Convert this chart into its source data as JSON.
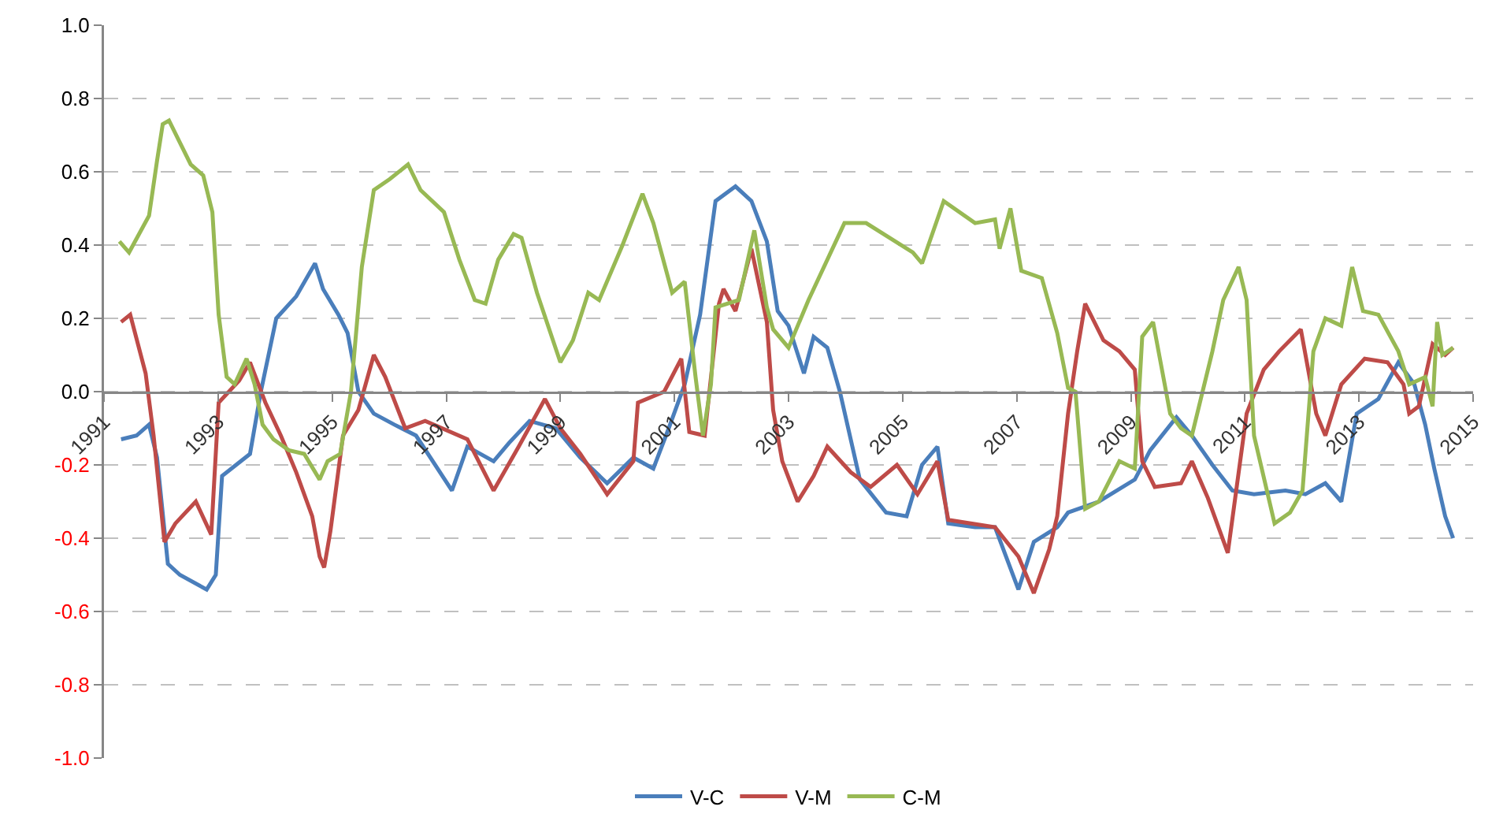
{
  "chart_data": {
    "type": "line",
    "xlim": [
      1991,
      2015
    ],
    "xticks": [
      1991,
      1993,
      1995,
      1997,
      1999,
      2001,
      2003,
      2005,
      2007,
      2009,
      2011,
      2013,
      2015
    ],
    "ylim": [
      -1,
      1
    ],
    "yticks": [
      {
        "value": -1,
        "label": "-1.0"
      },
      -0.8,
      -0.6,
      -0.4,
      -0.2,
      {
        "value": 0,
        "label": "0.0"
      },
      0.2,
      0.4,
      0.6,
      0.8,
      {
        "value": 1,
        "label": "1.0"
      }
    ],
    "grid": "y",
    "legend": "bottom",
    "marker": "none",
    "line_style": "solid",
    "series": [
      {
        "name": "V-C",
        "color": "#4a7ebb",
        "x": [
          1991.3,
          1991.57,
          1991.79,
          1991.93,
          1992.12,
          1992.33,
          1992.8,
          1992.96,
          1993.07,
          1993.56,
          1993.75,
          1994.02,
          1994.37,
          1994.7,
          1994.84,
          1995.11,
          1995.27,
          1995.46,
          1995.73,
          1996.09,
          1996.47,
          1997.1,
          1997.37,
          1997.83,
          1998.1,
          1998.46,
          1998.92,
          1999.35,
          1999.82,
          2000.28,
          2000.63,
          2000.9,
          2001.18,
          2001.45,
          2001.72,
          2002.07,
          2002.35,
          2002.62,
          2002.81,
          2003.0,
          2003.27,
          2003.44,
          2003.68,
          2003.9,
          2004.25,
          2004.71,
          2005.07,
          2005.34,
          2005.61,
          2005.8,
          2006.27,
          2006.62,
          2007.03,
          2007.3,
          2007.71,
          2007.9,
          2008.44,
          2009.07,
          2009.34,
          2009.8,
          2010.07,
          2010.43,
          2010.78,
          2011.16,
          2011.71,
          2012.06,
          2012.41,
          2012.69,
          2012.96,
          2013.34,
          2013.69,
          2013.97,
          2014.16,
          2014.32,
          2014.51,
          2014.65
        ],
        "values": [
          -0.13,
          -0.12,
          -0.09,
          -0.18,
          -0.47,
          -0.5,
          -0.54,
          -0.5,
          -0.23,
          -0.17,
          0,
          0.2,
          0.26,
          0.35,
          0.28,
          0.21,
          0.16,
          0,
          -0.06,
          -0.09,
          -0.12,
          -0.27,
          -0.15,
          -0.19,
          -0.14,
          -0.08,
          -0.1,
          -0.18,
          -0.25,
          -0.18,
          -0.21,
          -0.1,
          0.02,
          0.21,
          0.52,
          0.56,
          0.52,
          0.41,
          0.22,
          0.18,
          0.05,
          0.15,
          0.12,
          0,
          -0.24,
          -0.33,
          -0.34,
          -0.2,
          -0.15,
          -0.36,
          -0.37,
          -0.37,
          -0.54,
          -0.41,
          -0.37,
          -0.33,
          -0.3,
          -0.24,
          -0.16,
          -0.07,
          -0.12,
          -0.2,
          -0.27,
          -0.28,
          -0.27,
          -0.28,
          -0.25,
          -0.3,
          -0.06,
          -0.02,
          0.08,
          0.02,
          -0.09,
          -0.21,
          -0.34,
          -0.4
        ]
      },
      {
        "name": "V-M",
        "color": "#be4b48",
        "x": [
          1991.3,
          1991.46,
          1991.73,
          1991.87,
          1992.06,
          1992.25,
          1992.61,
          1992.88,
          1993.01,
          1993.37,
          1993.56,
          1993.83,
          1994.1,
          1994.37,
          1994.65,
          1994.78,
          1994.86,
          1994.97,
          1995.19,
          1995.46,
          1995.73,
          1995.93,
          1996.28,
          1996.63,
          1997.37,
          1997.83,
          1998.27,
          1998.73,
          1999.0,
          1999.35,
          1999.82,
          2000.28,
          2000.36,
          2000.82,
          2001.12,
          2001.26,
          2001.53,
          2001.78,
          2001.86,
          2002.07,
          2002.35,
          2002.62,
          2002.73,
          2002.89,
          2003.16,
          2003.44,
          2003.68,
          2004.09,
          2004.44,
          2004.9,
          2005.26,
          2005.61,
          2005.8,
          2006.62,
          2007.03,
          2007.3,
          2007.57,
          2007.71,
          2007.9,
          2008.06,
          2008.2,
          2008.52,
          2008.8,
          2009.07,
          2009.2,
          2009.42,
          2009.88,
          2010.07,
          2010.35,
          2010.7,
          2011.03,
          2011.33,
          2011.6,
          2011.98,
          2012.25,
          2012.41,
          2012.69,
          2013.1,
          2013.5,
          2013.78,
          2013.88,
          2014.05,
          2014.29,
          2014.51,
          2014.65
        ],
        "values": [
          0.19,
          0.21,
          0.05,
          -0.12,
          -0.41,
          -0.36,
          -0.3,
          -0.39,
          -0.03,
          0.03,
          0.08,
          -0.03,
          -0.12,
          -0.22,
          -0.34,
          -0.45,
          -0.48,
          -0.38,
          -0.12,
          -0.05,
          0.1,
          0.04,
          -0.1,
          -0.08,
          -0.13,
          -0.27,
          -0.15,
          -0.02,
          -0.1,
          -0.17,
          -0.28,
          -0.19,
          -0.03,
          0,
          0.09,
          -0.11,
          -0.12,
          0.24,
          0.28,
          0.22,
          0.39,
          0.19,
          -0.05,
          -0.19,
          -0.3,
          -0.23,
          -0.15,
          -0.22,
          -0.26,
          -0.2,
          -0.28,
          -0.19,
          -0.35,
          -0.37,
          -0.45,
          -0.55,
          -0.43,
          -0.34,
          -0.06,
          0.11,
          0.24,
          0.14,
          0.11,
          0.06,
          -0.19,
          -0.26,
          -0.25,
          -0.19,
          -0.29,
          -0.44,
          -0.06,
          0.06,
          0.11,
          0.17,
          -0.06,
          -0.12,
          0.02,
          0.09,
          0.08,
          0.02,
          -0.06,
          -0.04,
          0.13,
          0.1,
          0.12
        ]
      },
      {
        "name": "C-M",
        "color": "#98b954",
        "x": [
          1991.27,
          1991.44,
          1991.79,
          1991.93,
          1992.03,
          1992.14,
          1992.33,
          1992.52,
          1992.74,
          1992.9,
          1993.01,
          1993.15,
          1993.29,
          1993.5,
          1993.64,
          1993.78,
          1993.97,
          1994.24,
          1994.51,
          1994.78,
          1994.92,
          1995.14,
          1995.33,
          1995.52,
          1995.73,
          1996.01,
          1996.33,
          1996.55,
          1996.96,
          1997.23,
          1997.5,
          1997.69,
          1997.91,
          1998.18,
          1998.32,
          1998.59,
          1999.0,
          1999.22,
          1999.49,
          1999.68,
          2000.09,
          2000.44,
          2000.63,
          2000.96,
          2001.18,
          2001.37,
          2001.5,
          2001.64,
          2001.72,
          2002.13,
          2002.4,
          2002.62,
          2002.73,
          2003.0,
          2003.35,
          2003.98,
          2004.36,
          2005.18,
          2005.34,
          2005.72,
          2006.27,
          2006.62,
          2006.7,
          2006.89,
          2007.08,
          2007.44,
          2007.71,
          2007.9,
          2008.03,
          2008.2,
          2008.44,
          2008.8,
          2009.07,
          2009.2,
          2009.39,
          2009.69,
          2009.88,
          2010.07,
          2010.43,
          2010.62,
          2010.89,
          2011.03,
          2011.16,
          2011.52,
          2011.79,
          2012.01,
          2012.2,
          2012.41,
          2012.69,
          2012.88,
          2013.07,
          2013.34,
          2013.69,
          2013.88,
          2014.16,
          2014.29,
          2014.37,
          2014.46,
          2014.65
        ],
        "values": [
          0.41,
          0.38,
          0.48,
          0.63,
          0.73,
          0.74,
          0.68,
          0.62,
          0.59,
          0.49,
          0.21,
          0.04,
          0.02,
          0.09,
          0.02,
          -0.09,
          -0.13,
          -0.16,
          -0.17,
          -0.24,
          -0.19,
          -0.17,
          0,
          0.34,
          0.55,
          0.58,
          0.62,
          0.55,
          0.49,
          0.36,
          0.25,
          0.24,
          0.36,
          0.43,
          0.42,
          0.27,
          0.08,
          0.14,
          0.27,
          0.25,
          0.4,
          0.54,
          0.46,
          0.27,
          0.3,
          0.04,
          -0.12,
          0.02,
          0.23,
          0.25,
          0.44,
          0.23,
          0.17,
          0.12,
          0.25,
          0.46,
          0.46,
          0.38,
          0.35,
          0.52,
          0.46,
          0.47,
          0.39,
          0.5,
          0.33,
          0.31,
          0.16,
          0.01,
          0,
          -0.32,
          -0.3,
          -0.19,
          -0.21,
          0.15,
          0.19,
          -0.06,
          -0.1,
          -0.12,
          0.11,
          0.25,
          0.34,
          0.25,
          -0.12,
          -0.36,
          -0.33,
          -0.27,
          0.11,
          0.2,
          0.18,
          0.34,
          0.22,
          0.21,
          0.11,
          0.02,
          0.04,
          -0.04,
          0.19,
          0.1,
          0.12
        ]
      }
    ]
  }
}
